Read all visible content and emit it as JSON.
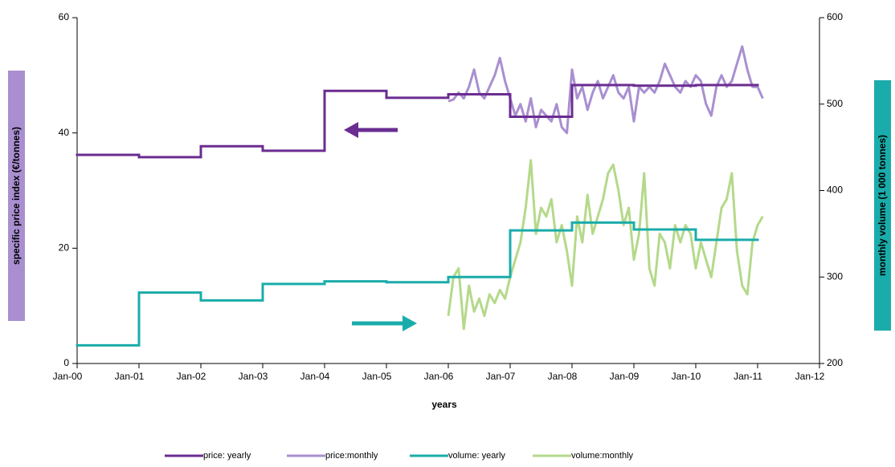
{
  "chart_data": {
    "type": "line",
    "xlabel": "years",
    "ylabel": "specific price index (€/tonnes)",
    "y2label": "monthly volume (1 000 tonnes)",
    "xlim": [
      "2000-01",
      "2012-01"
    ],
    "xticks": [
      {
        "value": "2000-01",
        "label": "Jan-00"
      },
      {
        "value": "2001-01",
        "label": "Jan-01"
      },
      {
        "value": "2002-01",
        "label": "Jan-02"
      },
      {
        "value": "2003-01",
        "label": "Jan-03"
      },
      {
        "value": "2004-01",
        "label": "Jan-04"
      },
      {
        "value": "2005-01",
        "label": "Jan-05"
      },
      {
        "value": "2006-01",
        "label": "Jan-06"
      },
      {
        "value": "2007-01",
        "label": "Jan-07"
      },
      {
        "value": "2008-01",
        "label": "Jan-08"
      },
      {
        "value": "2009-01",
        "label": "Jan-09"
      },
      {
        "value": "2010-01",
        "label": "Jan-10"
      },
      {
        "value": "2011-01",
        "label": "Jan-11"
      },
      {
        "value": "2012-01",
        "label": "Jan-12"
      }
    ],
    "ylim": [
      0,
      60
    ],
    "yticks": [
      0,
      20,
      40,
      60
    ],
    "y2lim": [
      200,
      600
    ],
    "y2ticks": [
      200,
      300,
      400,
      500,
      600
    ],
    "legend": "bottom",
    "series": [
      {
        "name": "price: yearly",
        "color": "#6a2c91",
        "step": true,
        "x": [
          "2000-01",
          "2001-01",
          "2002-01",
          "2003-01",
          "2004-01",
          "2005-01",
          "2006-01",
          "2007-01",
          "2008-01",
          "2009-01",
          "2010-01"
        ],
        "values": [
          36.2,
          35.8,
          37.7,
          36.9,
          47.3,
          46.1,
          46.7,
          42.8,
          48.3,
          48.2,
          48.3
        ]
      },
      {
        "name": "price:monthly",
        "color": "#a98fd0",
        "x": [
          "2006-01",
          "2006-02",
          "2006-03",
          "2006-04",
          "2006-05",
          "2006-06",
          "2006-07",
          "2006-08",
          "2006-09",
          "2006-10",
          "2006-11",
          "2006-12",
          "2007-01",
          "2007-02",
          "2007-03",
          "2007-04",
          "2007-05",
          "2007-06",
          "2007-07",
          "2007-08",
          "2007-09",
          "2007-10",
          "2007-11",
          "2007-12",
          "2008-01",
          "2008-02",
          "2008-03",
          "2008-04",
          "2008-05",
          "2008-06",
          "2008-07",
          "2008-08",
          "2008-09",
          "2008-10",
          "2008-11",
          "2008-12",
          "2009-01",
          "2009-02",
          "2009-03",
          "2009-04",
          "2009-05",
          "2009-06",
          "2009-07",
          "2009-08",
          "2009-09",
          "2009-10",
          "2009-11",
          "2009-12",
          "2010-01",
          "2010-02",
          "2010-03",
          "2010-04",
          "2010-05",
          "2010-06",
          "2010-07",
          "2010-08",
          "2010-09",
          "2010-10",
          "2010-11",
          "2010-12",
          "2011-01",
          "2011-02"
        ],
        "values": [
          45.5,
          45.8,
          47,
          46,
          48,
          51,
          47,
          46,
          48,
          50,
          53,
          49,
          46,
          43,
          45,
          42,
          46,
          41,
          44,
          43,
          42,
          45,
          41,
          40,
          51,
          46,
          48,
          44,
          47,
          49,
          46,
          48,
          50,
          47,
          46,
          48,
          42,
          48,
          47,
          48,
          47,
          49,
          52,
          50,
          48,
          47,
          49,
          48,
          50,
          49,
          45,
          43,
          48,
          50,
          48,
          49,
          52,
          55,
          51,
          48,
          48,
          46
        ]
      },
      {
        "name": "volume: yearly",
        "color": "#1aacaa",
        "step": true,
        "axis": "y2",
        "x": [
          "2000-01",
          "2001-01",
          "2002-01",
          "2003-01",
          "2004-01",
          "2005-01",
          "2006-01",
          "2007-01",
          "2008-01",
          "2009-01",
          "2010-01"
        ],
        "values": [
          221,
          282,
          273,
          292,
          295,
          294,
          300,
          354,
          363,
          355,
          343
        ]
      },
      {
        "name": "volume:monthly",
        "color": "#b4d98a",
        "axis": "y2",
        "x": [
          "2006-01",
          "2006-02",
          "2006-03",
          "2006-04",
          "2006-05",
          "2006-06",
          "2006-07",
          "2006-08",
          "2006-09",
          "2006-10",
          "2006-11",
          "2006-12",
          "2007-01",
          "2007-02",
          "2007-03",
          "2007-04",
          "2007-05",
          "2007-06",
          "2007-07",
          "2007-08",
          "2007-09",
          "2007-10",
          "2007-11",
          "2007-12",
          "2008-01",
          "2008-02",
          "2008-03",
          "2008-04",
          "2008-05",
          "2008-06",
          "2008-07",
          "2008-08",
          "2008-09",
          "2008-10",
          "2008-11",
          "2008-12",
          "2009-01",
          "2009-02",
          "2009-03",
          "2009-04",
          "2009-05",
          "2009-06",
          "2009-07",
          "2009-08",
          "2009-09",
          "2009-10",
          "2009-11",
          "2009-12",
          "2010-01",
          "2010-02",
          "2010-03",
          "2010-04",
          "2010-05",
          "2010-06",
          "2010-07",
          "2010-08",
          "2010-09",
          "2010-10",
          "2010-11",
          "2010-12",
          "2011-01",
          "2011-02"
        ],
        "values": [
          255,
          300,
          310,
          240,
          290,
          260,
          275,
          255,
          280,
          270,
          285,
          275,
          300,
          320,
          340,
          380,
          435,
          350,
          380,
          370,
          390,
          340,
          360,
          330,
          290,
          370,
          340,
          395,
          350,
          370,
          390,
          420,
          430,
          400,
          360,
          380,
          320,
          350,
          420,
          310,
          290,
          350,
          340,
          310,
          360,
          340,
          360,
          350,
          310,
          340,
          320,
          300,
          340,
          380,
          390,
          420,
          330,
          290,
          280,
          340,
          360,
          370
        ]
      }
    ]
  }
}
